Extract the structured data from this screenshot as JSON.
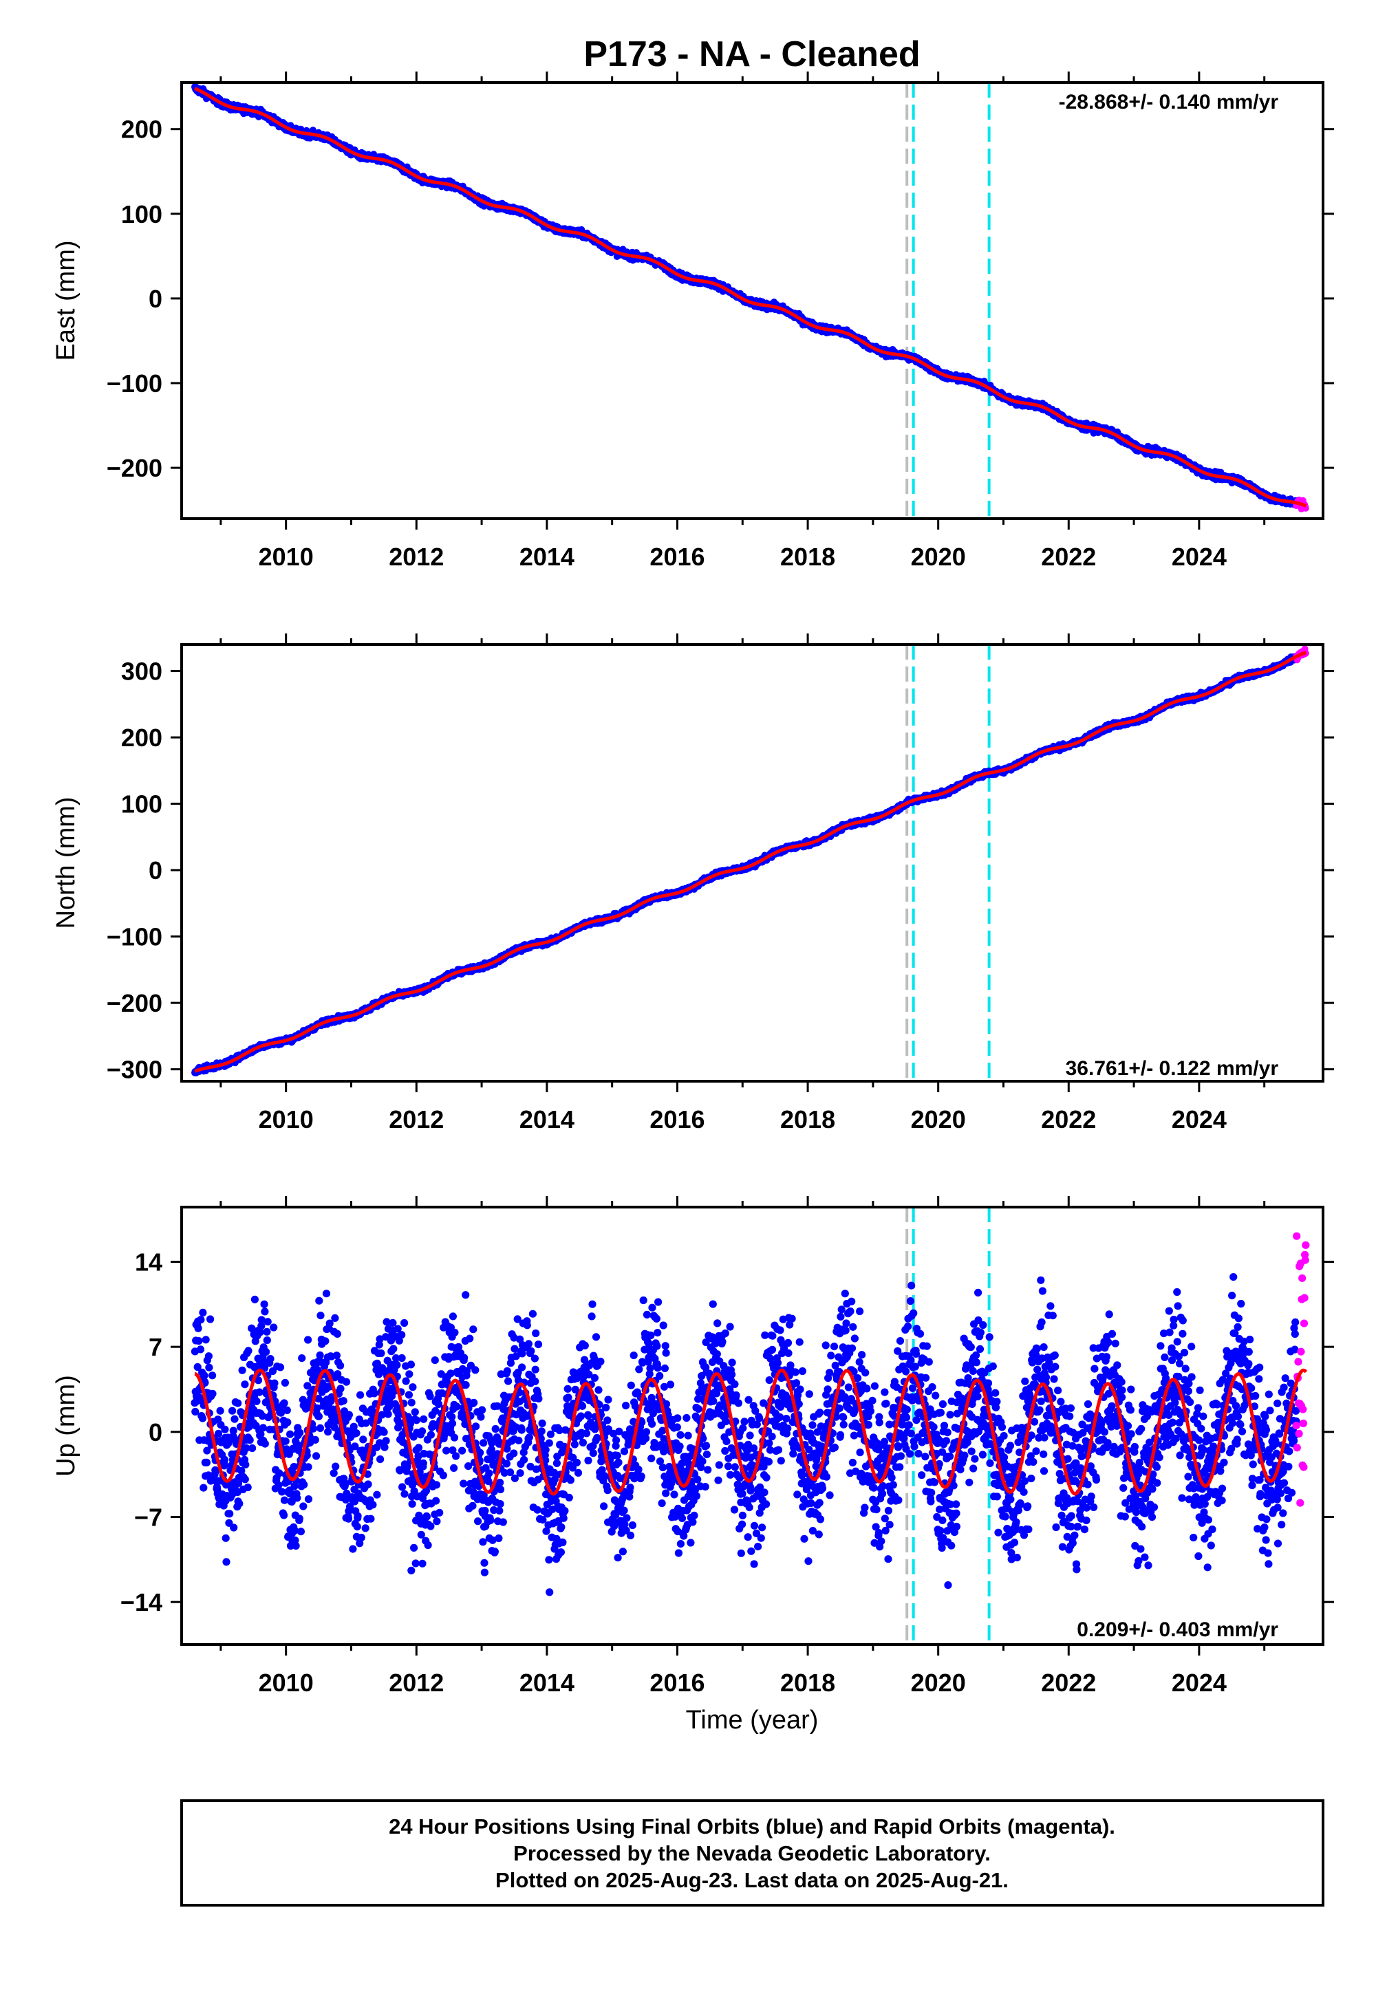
{
  "title": "P173  - NA - Cleaned",
  "xlabel": "Time (year)",
  "footer": {
    "line1": "24 Hour Positions Using Final Orbits (blue) and Rapid Orbits (magenta).",
    "line2": "Processed by the Nevada Geodetic Laboratory.",
    "line3": "Plotted on 2025-Aug-23. Last data on 2025-Aug-21."
  },
  "colors": {
    "final": "#0000ff",
    "rapid": "#ff00ff",
    "model": "#ff0000",
    "equipment": "#bdbdbd",
    "event": "#00e5ee"
  },
  "chart_data": [
    {
      "type": "scatter",
      "component": "east",
      "ylabel": "East (mm)",
      "rate": "-28.868+/- 0.140 mm/yr",
      "xlim": [
        2008.4,
        2025.9
      ],
      "ylim": [
        -260,
        255
      ],
      "x_ticks": [
        2010,
        2012,
        2014,
        2016,
        2018,
        2020,
        2022,
        2024
      ],
      "y_ticks": [
        -200,
        -100,
        0,
        100,
        200
      ],
      "start": {
        "x": 2008.6,
        "y": 245
      },
      "end": {
        "x": 2025.64,
        "y": -248
      },
      "seasonal_amplitude_mm": 3,
      "scatter_mm": 2,
      "vertical_lines": [
        {
          "x": 2019.52,
          "kind": "equipment"
        },
        {
          "x": 2019.62,
          "kind": "event"
        },
        {
          "x": 2020.78,
          "kind": "event"
        }
      ]
    },
    {
      "type": "scatter",
      "component": "north",
      "ylabel": "North (mm)",
      "rate": "36.761+/- 0.122 mm/yr",
      "xlim": [
        2008.4,
        2025.9
      ],
      "ylim": [
        -318,
        340
      ],
      "x_ticks": [
        2010,
        2012,
        2014,
        2016,
        2018,
        2020,
        2022,
        2024
      ],
      "y_ticks": [
        -300,
        -200,
        -100,
        0,
        100,
        200,
        300
      ],
      "start": {
        "x": 2008.6,
        "y": -306
      },
      "end": {
        "x": 2025.64,
        "y": 325
      },
      "seasonal_amplitude_mm": 3,
      "scatter_mm": 2,
      "vertical_lines": [
        {
          "x": 2019.52,
          "kind": "equipment"
        },
        {
          "x": 2019.62,
          "kind": "event"
        },
        {
          "x": 2020.78,
          "kind": "event"
        }
      ]
    },
    {
      "type": "scatter",
      "component": "up",
      "ylabel": "Up (mm)",
      "rate": "0.209+/- 0.403 mm/yr",
      "xlim": [
        2008.4,
        2025.9
      ],
      "ylim": [
        -17.5,
        18.5
      ],
      "x_ticks": [
        2010,
        2012,
        2014,
        2016,
        2018,
        2020,
        2022,
        2024
      ],
      "y_ticks": [
        -14,
        -7,
        0,
        7,
        14
      ],
      "start": {
        "x": 2008.6,
        "y": 0
      },
      "end": {
        "x": 2025.64,
        "y": 0
      },
      "seasonal_amplitude_mm": 4.5,
      "scatter_mm": 3.2,
      "vertical_lines": [
        {
          "x": 2019.52,
          "kind": "equipment"
        },
        {
          "x": 2019.62,
          "kind": "event"
        },
        {
          "x": 2020.78,
          "kind": "event"
        }
      ]
    }
  ]
}
